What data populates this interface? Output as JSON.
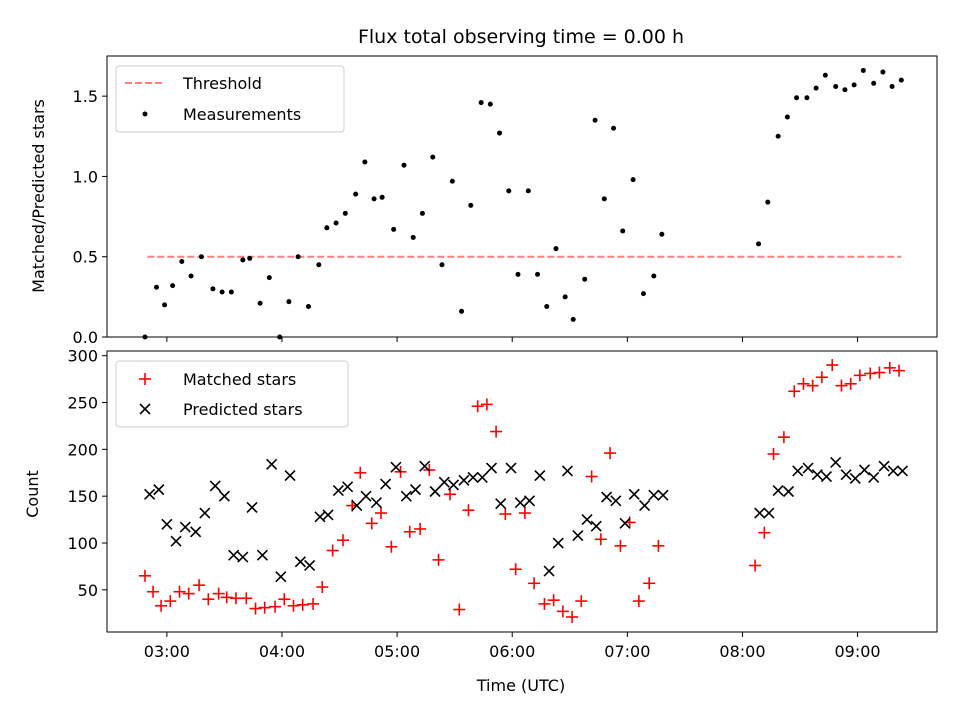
{
  "figure_title": "Flux total observing time = 0.00 h",
  "x_axis_label": "Time (UTC)",
  "x_tick_labels": [
    "03:00",
    "04:00",
    "05:00",
    "06:00",
    "07:00",
    "08:00",
    "09:00"
  ],
  "chart_data": [
    {
      "type": "line",
      "title": "Flux total observing time = 0.00 h",
      "xlabel": "",
      "ylabel": "Matched/Predicted stars",
      "xlim": [
        2.48,
        9.69
      ],
      "ylim": [
        0,
        1.75
      ],
      "yticks": [
        0.0,
        0.5,
        1.0,
        1.5
      ],
      "ytick_labels": [
        "0.0",
        "0.5",
        "1.0",
        "1.5"
      ],
      "legend": {
        "placement": "top-left",
        "entries": [
          "Threshold",
          "Measurements"
        ]
      },
      "threshold": {
        "name": "Threshold",
        "value": 0.5,
        "x_start": 2.83,
        "x_end": 9.38,
        "color": "#ff7f7f",
        "style": "dashed"
      },
      "measurements": {
        "name": "Measurements",
        "color": "#000000",
        "x": [
          2.81,
          2.91,
          2.98,
          3.05,
          3.13,
          3.21,
          3.3,
          3.4,
          3.48,
          3.56,
          3.66,
          3.72,
          3.81,
          3.89,
          3.98,
          4.06,
          4.14,
          4.23,
          4.32,
          4.39,
          4.47,
          4.55,
          4.64,
          4.72,
          4.8,
          4.87,
          4.97,
          5.06,
          5.14,
          5.22,
          5.31,
          5.39,
          5.48,
          5.56,
          5.64,
          5.73,
          5.81,
          5.89,
          5.97,
          6.05,
          6.14,
          6.22,
          6.3,
          6.38,
          6.46,
          6.53,
          6.63,
          6.72,
          6.8,
          6.88,
          6.96,
          7.05,
          7.14,
          7.23,
          7.3,
          8.14,
          8.22,
          8.31,
          8.39,
          8.47,
          8.56,
          8.64,
          8.72,
          8.81,
          8.89,
          8.97,
          9.05,
          9.14,
          9.22,
          9.3,
          9.38
        ],
        "y": [
          0.0,
          0.31,
          0.2,
          0.32,
          0.47,
          0.38,
          0.5,
          0.3,
          0.28,
          0.28,
          0.48,
          0.49,
          0.21,
          0.37,
          0.0,
          0.22,
          0.5,
          0.19,
          0.45,
          0.68,
          0.71,
          0.77,
          0.89,
          1.09,
          0.86,
          0.87,
          0.67,
          1.07,
          0.62,
          0.77,
          1.12,
          0.45,
          0.97,
          0.16,
          0.82,
          1.46,
          1.45,
          1.27,
          0.91,
          0.39,
          0.91,
          0.39,
          0.19,
          0.55,
          0.25,
          0.11,
          0.36,
          1.35,
          0.86,
          1.3,
          0.66,
          0.98,
          0.27,
          0.38,
          0.64,
          0.58,
          0.84,
          1.25,
          1.37,
          1.49,
          1.49,
          1.55,
          1.63,
          1.56,
          1.54,
          1.57,
          1.66,
          1.58,
          1.65,
          1.56,
          1.6
        ]
      }
    },
    {
      "type": "scatter",
      "xlabel": "Time (UTC)",
      "ylabel": "Count",
      "xlim": [
        2.48,
        9.69
      ],
      "ylim": [
        5,
        305
      ],
      "yticks": [
        50,
        100,
        150,
        200,
        250,
        300
      ],
      "ytick_labels": [
        "50",
        "100",
        "150",
        "200",
        "250",
        "300"
      ],
      "legend": {
        "placement": "top-left",
        "entries": [
          "Matched stars",
          "Predicted stars"
        ]
      },
      "series": [
        {
          "name": "Matched stars",
          "marker": "plus",
          "color": "#ff0000",
          "x": [
            2.81,
            2.88,
            2.95,
            3.03,
            3.11,
            3.19,
            3.28,
            3.36,
            3.45,
            3.52,
            3.6,
            3.69,
            3.77,
            3.85,
            3.94,
            4.02,
            4.1,
            4.18,
            4.27,
            4.35,
            4.44,
            4.53,
            4.61,
            4.68,
            4.78,
            4.86,
            4.95,
            5.03,
            5.11,
            5.2,
            5.28,
            5.36,
            5.46,
            5.54,
            5.62,
            5.7,
            5.78,
            5.86,
            5.94,
            6.03,
            6.11,
            6.19,
            6.28,
            6.36,
            6.44,
            6.52,
            6.6,
            6.69,
            6.77,
            6.85,
            6.94,
            7.02,
            7.1,
            7.19,
            7.27,
            8.11,
            8.19,
            8.27,
            8.36,
            8.45,
            8.53,
            8.61,
            8.69,
            8.78,
            8.86,
            8.94,
            9.02,
            9.11,
            9.19,
            9.28,
            9.36
          ],
          "y": [
            65,
            48,
            33,
            38,
            48,
            46,
            55,
            40,
            46,
            42,
            41,
            41,
            30,
            31,
            32,
            40,
            33,
            34,
            35,
            53,
            92,
            103,
            140,
            175,
            121,
            132,
            96,
            176,
            112,
            115,
            178,
            82,
            152,
            29,
            135,
            246,
            248,
            219,
            131,
            72,
            132,
            57,
            35,
            39,
            27,
            21,
            38,
            171,
            104,
            196,
            97,
            122,
            38,
            57,
            97,
            76,
            111,
            195,
            213,
            262,
            270,
            268,
            277,
            290,
            268,
            270,
            279,
            281,
            282,
            287,
            284
          ]
        },
        {
          "name": "Predicted stars",
          "marker": "x",
          "color": "#000000",
          "x": [
            2.85,
            2.93,
            3.0,
            3.08,
            3.16,
            3.25,
            3.33,
            3.42,
            3.5,
            3.58,
            3.66,
            3.74,
            3.83,
            3.91,
            3.99,
            4.07,
            4.16,
            4.24,
            4.33,
            4.4,
            4.49,
            4.57,
            4.65,
            4.73,
            4.82,
            4.9,
            4.99,
            5.08,
            5.16,
            5.24,
            5.33,
            5.41,
            5.49,
            5.58,
            5.66,
            5.74,
            5.82,
            5.9,
            5.99,
            6.07,
            6.15,
            6.24,
            6.32,
            6.4,
            6.48,
            6.57,
            6.65,
            6.73,
            6.82,
            6.9,
            6.98,
            7.06,
            7.15,
            7.23,
            7.31,
            8.15,
            8.23,
            8.31,
            8.4,
            8.48,
            8.57,
            8.65,
            8.73,
            8.81,
            8.9,
            8.98,
            9.06,
            9.14,
            9.23,
            9.31,
            9.39
          ],
          "y": [
            152,
            157,
            120,
            102,
            117,
            112,
            132,
            161,
            150,
            87,
            85,
            138,
            87,
            184,
            64,
            172,
            80,
            76,
            128,
            130,
            156,
            160,
            140,
            150,
            143,
            163,
            181,
            150,
            157,
            182,
            155,
            165,
            162,
            167,
            170,
            170,
            180,
            142,
            180,
            143,
            145,
            172,
            70,
            100,
            177,
            108,
            125,
            118,
            149,
            145,
            121,
            152,
            140,
            151,
            151,
            132,
            132,
            156,
            155,
            177,
            180,
            173,
            171,
            186,
            173,
            169,
            178,
            170,
            182,
            177,
            177
          ]
        }
      ]
    }
  ]
}
